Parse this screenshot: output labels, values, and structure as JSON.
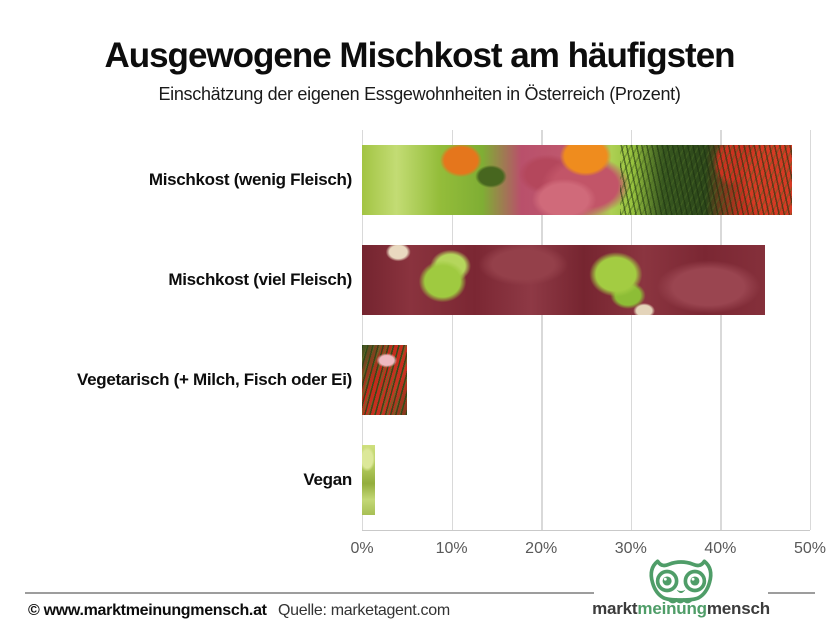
{
  "header": {
    "title": "Ausgewogene Mischkost am häufigsten",
    "subtitle": "Einschätzung der eigenen Essgewohnheiten in Österreich (Prozent)"
  },
  "chart_data": {
    "type": "bar",
    "orientation": "horizontal",
    "title": "Ausgewogene Mischkost am häufigsten",
    "subtitle": "Einschätzung der eigenen Essgewohnheiten in Österreich (Prozent)",
    "categories": [
      "Mischkost (wenig Fleisch)",
      "Mischkost (viel Fleisch)",
      "Vegetarisch (+ Milch, Fisch oder Ei)",
      "Vegan"
    ],
    "values": [
      48,
      45,
      5,
      1.5
    ],
    "unit": "%",
    "xlabel": "",
    "ylabel": "",
    "xlim": [
      0,
      50
    ],
    "x_ticks": [
      "0%",
      "10%",
      "20%",
      "30%",
      "40%",
      "50%"
    ],
    "grid": "vertical",
    "legend": "none",
    "bar_fill": "food photo collage (salad, raw meat, vegetables, dill, tomatoes)"
  },
  "footer": {
    "copyright": "© www.marktmeinungmensch.at",
    "source": "Quelle: marketagent.com"
  },
  "logo": {
    "icon": "owl-icon",
    "word1": "markt",
    "word2": "meinung",
    "word3": "mensch"
  },
  "colors": {
    "logo_green": "#4f9d68",
    "axis_text": "#595959",
    "gridline": "#d9d9d9",
    "footer_rule": "#9d9d9d",
    "title_text": "#0d0d0d"
  }
}
